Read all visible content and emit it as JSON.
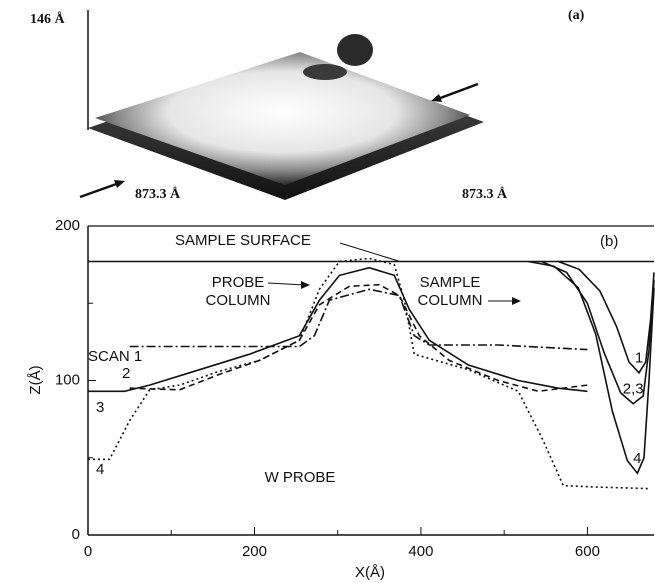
{
  "image_panel": {
    "height_label": "146 Å",
    "label": "(a)",
    "x_size": "873.3 Å",
    "y_size": "873.3 Å"
  },
  "chart_data": {
    "type": "line",
    "panel_label": "(b)",
    "xlabel": "X(Å)",
    "ylabel": "Z(Å)",
    "xlim": [
      0,
      680
    ],
    "ylim": [
      0,
      200
    ],
    "xticks": [
      0,
      200,
      400,
      600
    ],
    "yticks": [
      0,
      100,
      200
    ],
    "xminorticks": [
      100,
      300,
      500
    ],
    "yminorticks": [
      50,
      150
    ],
    "color": "#111111",
    "annotations": {
      "probe_column": [
        "PROBE",
        "COLUMN"
      ],
      "sample_column": [
        "SAMPLE",
        "COLUMN"
      ],
      "probe": "W PROBE"
    },
    "series": [
      {
        "name": "SAMPLE SURFACE",
        "dash": "solid",
        "x": [
          0,
          529,
          680
        ],
        "values": [
          177,
          177,
          177
        ]
      },
      {
        "name": "SCAN 1",
        "dash": "dashdot",
        "x": [
          50,
          254,
          272,
          290,
          338,
          374,
          392,
          410,
          493,
          600
        ],
        "values": [
          122,
          122,
          129,
          152,
          159,
          155,
          129,
          123,
          123,
          120
        ]
      },
      {
        "name": "2",
        "dash": "dashed",
        "x": [
          50,
          110,
          158,
          206,
          254,
          278,
          314,
          350,
          374,
          398,
          434,
          493,
          541,
          600
        ],
        "values": [
          95,
          94,
          104,
          113,
          126,
          149,
          161,
          162,
          155,
          129,
          113,
          100,
          93,
          97
        ]
      },
      {
        "name": "3",
        "dash": "solid",
        "x": [
          0,
          44,
          74,
          134,
          194,
          254,
          278,
          302,
          338,
          368,
          386,
          410,
          457,
          517,
          565,
          600
        ],
        "values": [
          93,
          93,
          97,
          107,
          117,
          129,
          152,
          168,
          173,
          168,
          146,
          126,
          110,
          100,
          95,
          93
        ]
      },
      {
        "name": "4",
        "dash": "dotted",
        "x": [
          0,
          26,
          50,
          74,
          110,
          158,
          206,
          254,
          278,
          302,
          338,
          368,
          380,
          392,
          457,
          517,
          547,
          571,
          613,
          673
        ],
        "values": [
          49,
          49,
          74,
          94,
          97,
          106,
          113,
          126,
          159,
          177,
          179,
          175,
          152,
          117,
          107,
          93,
          61,
          32,
          31,
          30
        ]
      },
      {
        "name": "1",
        "dash": "solid",
        "x": [
          565,
          590,
          615,
          635,
          650,
          662,
          670,
          676,
          680
        ],
        "values": [
          177,
          172,
          158,
          135,
          112,
          105,
          112,
          140,
          170
        ]
      },
      {
        "name": "2,3",
        "dash": "solid",
        "x": [
          545,
          575,
          600,
          620,
          640,
          655,
          667,
          674,
          680
        ],
        "values": [
          177,
          170,
          150,
          118,
          92,
          85,
          90,
          120,
          165
        ]
      },
      {
        "name": "4",
        "dash": "solid",
        "x": [
          529,
          560,
          589,
          610,
          630,
          648,
          660,
          668,
          674,
          680
        ],
        "values": [
          177,
          174,
          160,
          130,
          80,
          48,
          40,
          50,
          100,
          160
        ]
      }
    ]
  }
}
